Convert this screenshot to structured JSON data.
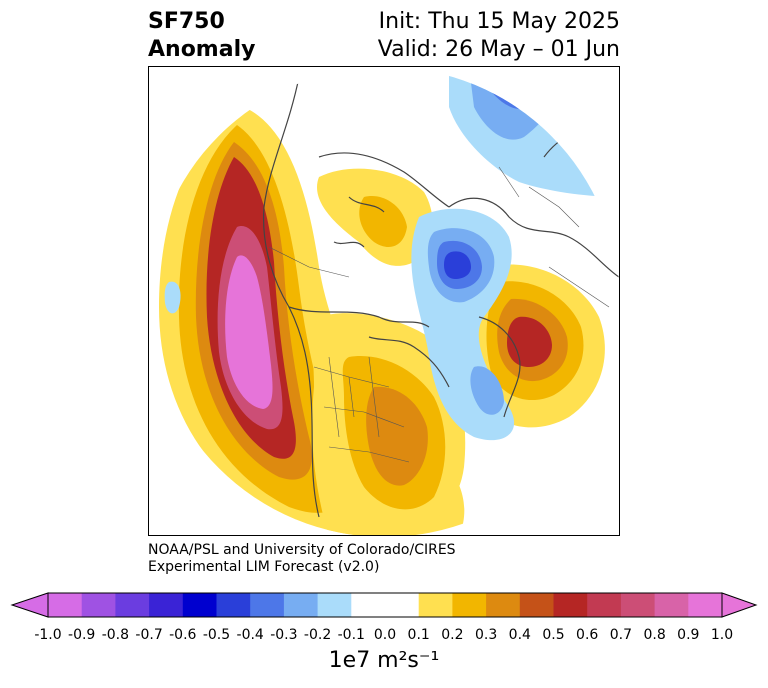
{
  "title": {
    "variable": "SF750",
    "kind": "Anomaly",
    "init": "Init: Thu 15 May 2025",
    "valid": "Valid: 26 May – 01 Jun"
  },
  "credit": {
    "line1": "NOAA/PSL and University of Colorado/CIRES",
    "line2": "Experimental LIM Forecast (v2.0)"
  },
  "colorbar": {
    "units": "1e7 m²s⁻¹",
    "ticks": [
      "-1.0",
      "-0.9",
      "-0.8",
      "-0.7",
      "-0.6",
      "-0.5",
      "-0.4",
      "-0.3",
      "-0.2",
      "-0.1",
      "0.0",
      "0.1",
      "0.2",
      "0.3",
      "0.4",
      "0.5",
      "0.6",
      "0.7",
      "0.8",
      "0.9",
      "1.0"
    ],
    "colors": [
      "#d66ce6",
      "#9f52e3",
      "#6b3de0",
      "#3a23d6",
      "#0000cf",
      "#2a3fd9",
      "#4d77e8",
      "#77adf2",
      "#aadcfa",
      "#ffffff",
      "#ffffff",
      "#ffe050",
      "#f2b600",
      "#dd8a10",
      "#c55218",
      "#b52624",
      "#c23a52",
      "#cc4e76",
      "#d863a8",
      "#e674d9"
    ]
  },
  "map": {
    "projection": "north-polar-stereographic",
    "field": "SF750 anomaly",
    "features": [
      "positive-anomaly-north-pacific-gulf-of-alaska",
      "positive-anomaly-western-russia",
      "positive-anomaly-eastern-north-america",
      "negative-anomaly-arctic-barents-kara",
      "negative-anomaly-north-atlantic",
      "negative-anomaly-siberia"
    ]
  }
}
